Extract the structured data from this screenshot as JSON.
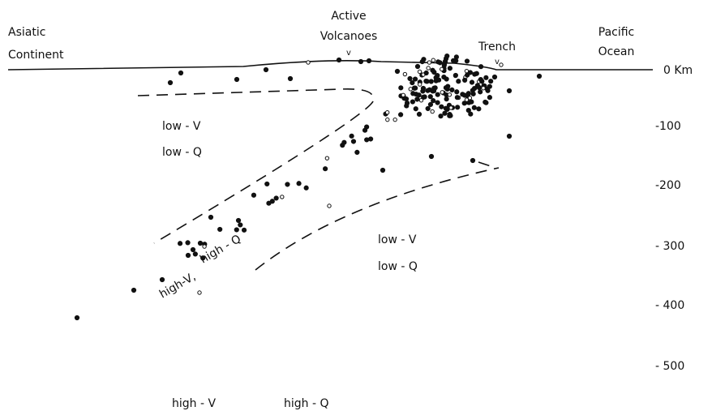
{
  "labels": {
    "continent": [
      "Asiatic",
      "Continent"
    ],
    "volcanoes": [
      "Active",
      "Volcanoes"
    ],
    "trench": "Trench",
    "ocean": [
      "Pacific",
      "Ocean"
    ]
  },
  "depth_labels": [
    "0 Km",
    "-100",
    "-200",
    "- 300",
    "- 400",
    "- 500"
  ],
  "regions": {
    "wedge": [
      "low - V",
      "low - Q"
    ],
    "mantle": [
      "low - V",
      "low - Q"
    ],
    "slab": [
      "high-V,",
      "high - Q"
    ],
    "deep": [
      "high - V",
      "high - Q"
    ]
  }
}
